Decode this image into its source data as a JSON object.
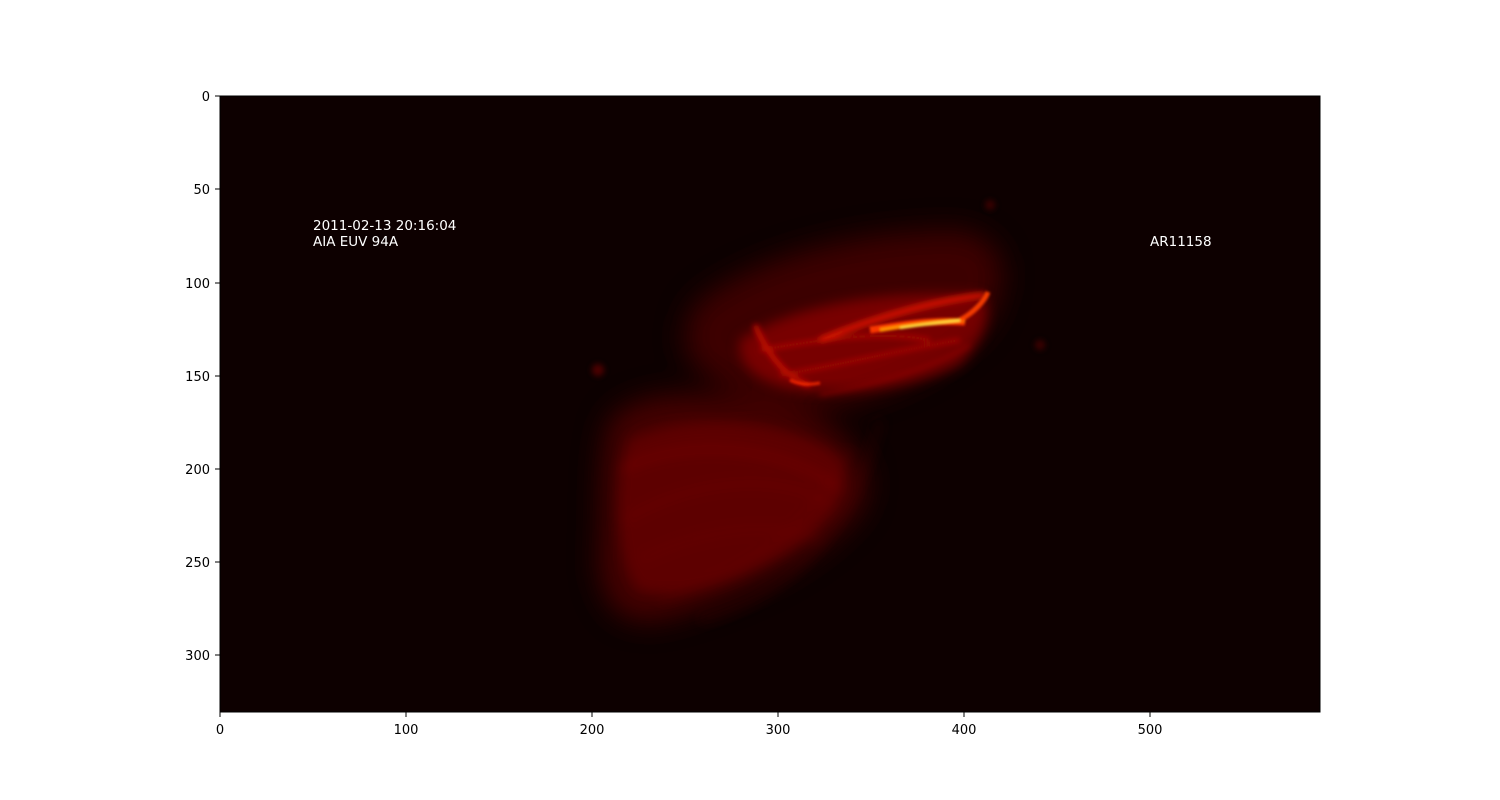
{
  "image": {
    "type": "heatmap",
    "colormap": "hot",
    "background_color": "#0d0000",
    "x_axis": {
      "range": [
        0,
        590
      ],
      "ticks": [
        0,
        100,
        200,
        300,
        400,
        500
      ]
    },
    "y_axis": {
      "range": [
        0,
        330
      ],
      "inverted": true,
      "ticks": [
        0,
        50,
        100,
        150,
        200,
        250,
        300
      ]
    }
  },
  "annotations": {
    "timestamp": "2011-02-13 20:16:04",
    "instrument": "AIA EUV 94A",
    "region": "AR11158"
  }
}
